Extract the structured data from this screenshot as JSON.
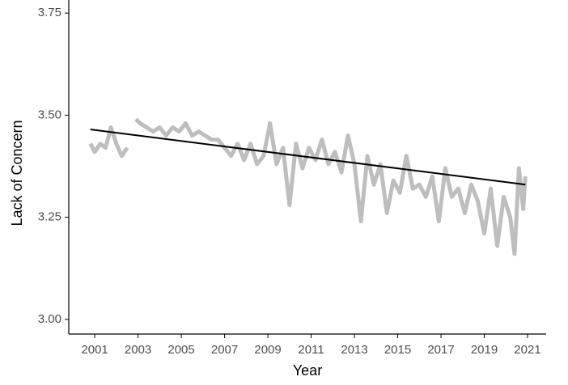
{
  "chart_data": {
    "type": "line",
    "x_label": "Year",
    "y_label": "Lack of Concern",
    "xlim": [
      1999.8,
      2021.86
    ],
    "ylim": [
      2.964,
      3.782
    ],
    "xticks": [
      2001,
      2003,
      2005,
      2007,
      2009,
      2011,
      2013,
      2015,
      2017,
      2019,
      2021
    ],
    "yticks": [
      {
        "value": 3,
        "label": "3.00"
      },
      3.25,
      {
        "value": 3.5,
        "label": "3.50"
      },
      3.75
    ],
    "grid": false,
    "series": [
      {
        "color": "#bebebe",
        "x": [
          2000.8,
          2001.0,
          2001.25,
          2001.5,
          2001.75,
          2002.0,
          2002.25,
          2002.5,
          2002.7,
          2002.9,
          2003.1,
          2003.4,
          2003.7,
          2004.0,
          2004.3,
          2004.6,
          2004.9,
          2005.2,
          2005.5,
          2005.8,
          2006.1,
          2006.4,
          2006.7,
          2007.0,
          2007.3,
          2007.6,
          2007.9,
          2008.2,
          2008.5,
          2008.8,
          2009.1,
          2009.4,
          2009.7,
          2010.0,
          2010.3,
          2010.6,
          2010.9,
          2011.2,
          2011.5,
          2011.8,
          2012.1,
          2012.4,
          2012.7,
          2013.0,
          2013.3,
          2013.6,
          2013.9,
          2014.2,
          2014.5,
          2014.8,
          2015.1,
          2015.4,
          2015.7,
          2016.0,
          2016.3,
          2016.6,
          2016.9,
          2017.2,
          2017.5,
          2017.8,
          2018.1,
          2018.4,
          2018.7,
          2019.0,
          2019.3,
          2019.6,
          2019.9,
          2020.2,
          2020.4,
          2020.6,
          2020.8,
          2020.9
        ],
        "values": [
          3.43,
          3.41,
          3.43,
          3.42,
          3.47,
          3.43,
          3.4,
          3.42,
          null,
          3.49,
          3.48,
          3.47,
          3.46,
          3.47,
          3.45,
          3.47,
          3.46,
          3.48,
          3.45,
          3.46,
          3.45,
          3.44,
          3.44,
          3.42,
          3.4,
          3.43,
          3.39,
          3.43,
          3.38,
          3.4,
          3.48,
          3.38,
          3.42,
          3.28,
          3.43,
          3.37,
          3.42,
          3.39,
          3.44,
          3.38,
          3.41,
          3.36,
          3.45,
          3.38,
          3.24,
          3.4,
          3.33,
          3.38,
          3.26,
          3.34,
          3.31,
          3.4,
          3.32,
          3.33,
          3.3,
          3.35,
          3.24,
          3.37,
          3.3,
          3.32,
          3.26,
          3.33,
          3.29,
          3.21,
          3.32,
          3.18,
          3.3,
          3.25,
          3.16,
          3.37,
          3.27,
          3.35
        ],
        "width": 5
      },
      {
        "color": "#000000",
        "x": [
          2000.8,
          2020.9
        ],
        "values": [
          3.465,
          3.33
        ],
        "width": 2
      }
    ]
  }
}
